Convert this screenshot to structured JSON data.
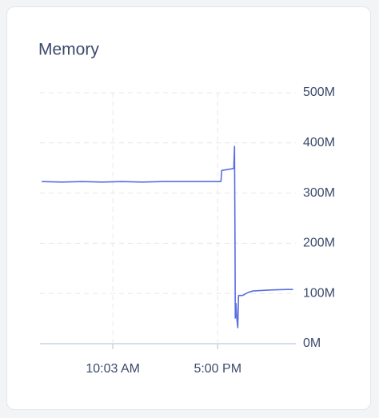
{
  "chart_data": {
    "type": "line",
    "title": "Memory",
    "x": [
      320,
      400,
      480,
      560,
      640,
      720,
      800,
      880,
      960,
      1033,
      1036,
      1084,
      1087,
      1089,
      1090,
      1093,
      1096,
      1100,
      1103,
      1119,
      1141,
      1160,
      1230,
      1294,
      1320
    ],
    "series": [
      {
        "name": "Memory",
        "color": "#5b6ee1",
        "values": [
          323,
          322,
          323,
          322,
          323,
          322,
          323,
          323,
          323,
          323,
          345,
          349,
          393,
          200,
          51,
          80,
          51,
          32,
          96,
          96,
          102,
          105,
          107,
          108,
          108
        ]
      }
    ],
    "xlim": [
      313,
      1331
    ],
    "xticks": [
      {
        "value": 603,
        "label": "10:03 AM"
      },
      {
        "value": 1020,
        "label": "5:00 PM"
      }
    ],
    "ylim": [
      0,
      500
    ],
    "yticks": [
      {
        "value": 0,
        "label": "0M"
      },
      {
        "value": 100,
        "label": "100M"
      },
      {
        "value": 200,
        "label": "200M"
      },
      {
        "value": 300,
        "label": "300M"
      },
      {
        "value": 400,
        "label": "400M"
      },
      {
        "value": 500,
        "label": "500M"
      }
    ],
    "grid": true
  }
}
